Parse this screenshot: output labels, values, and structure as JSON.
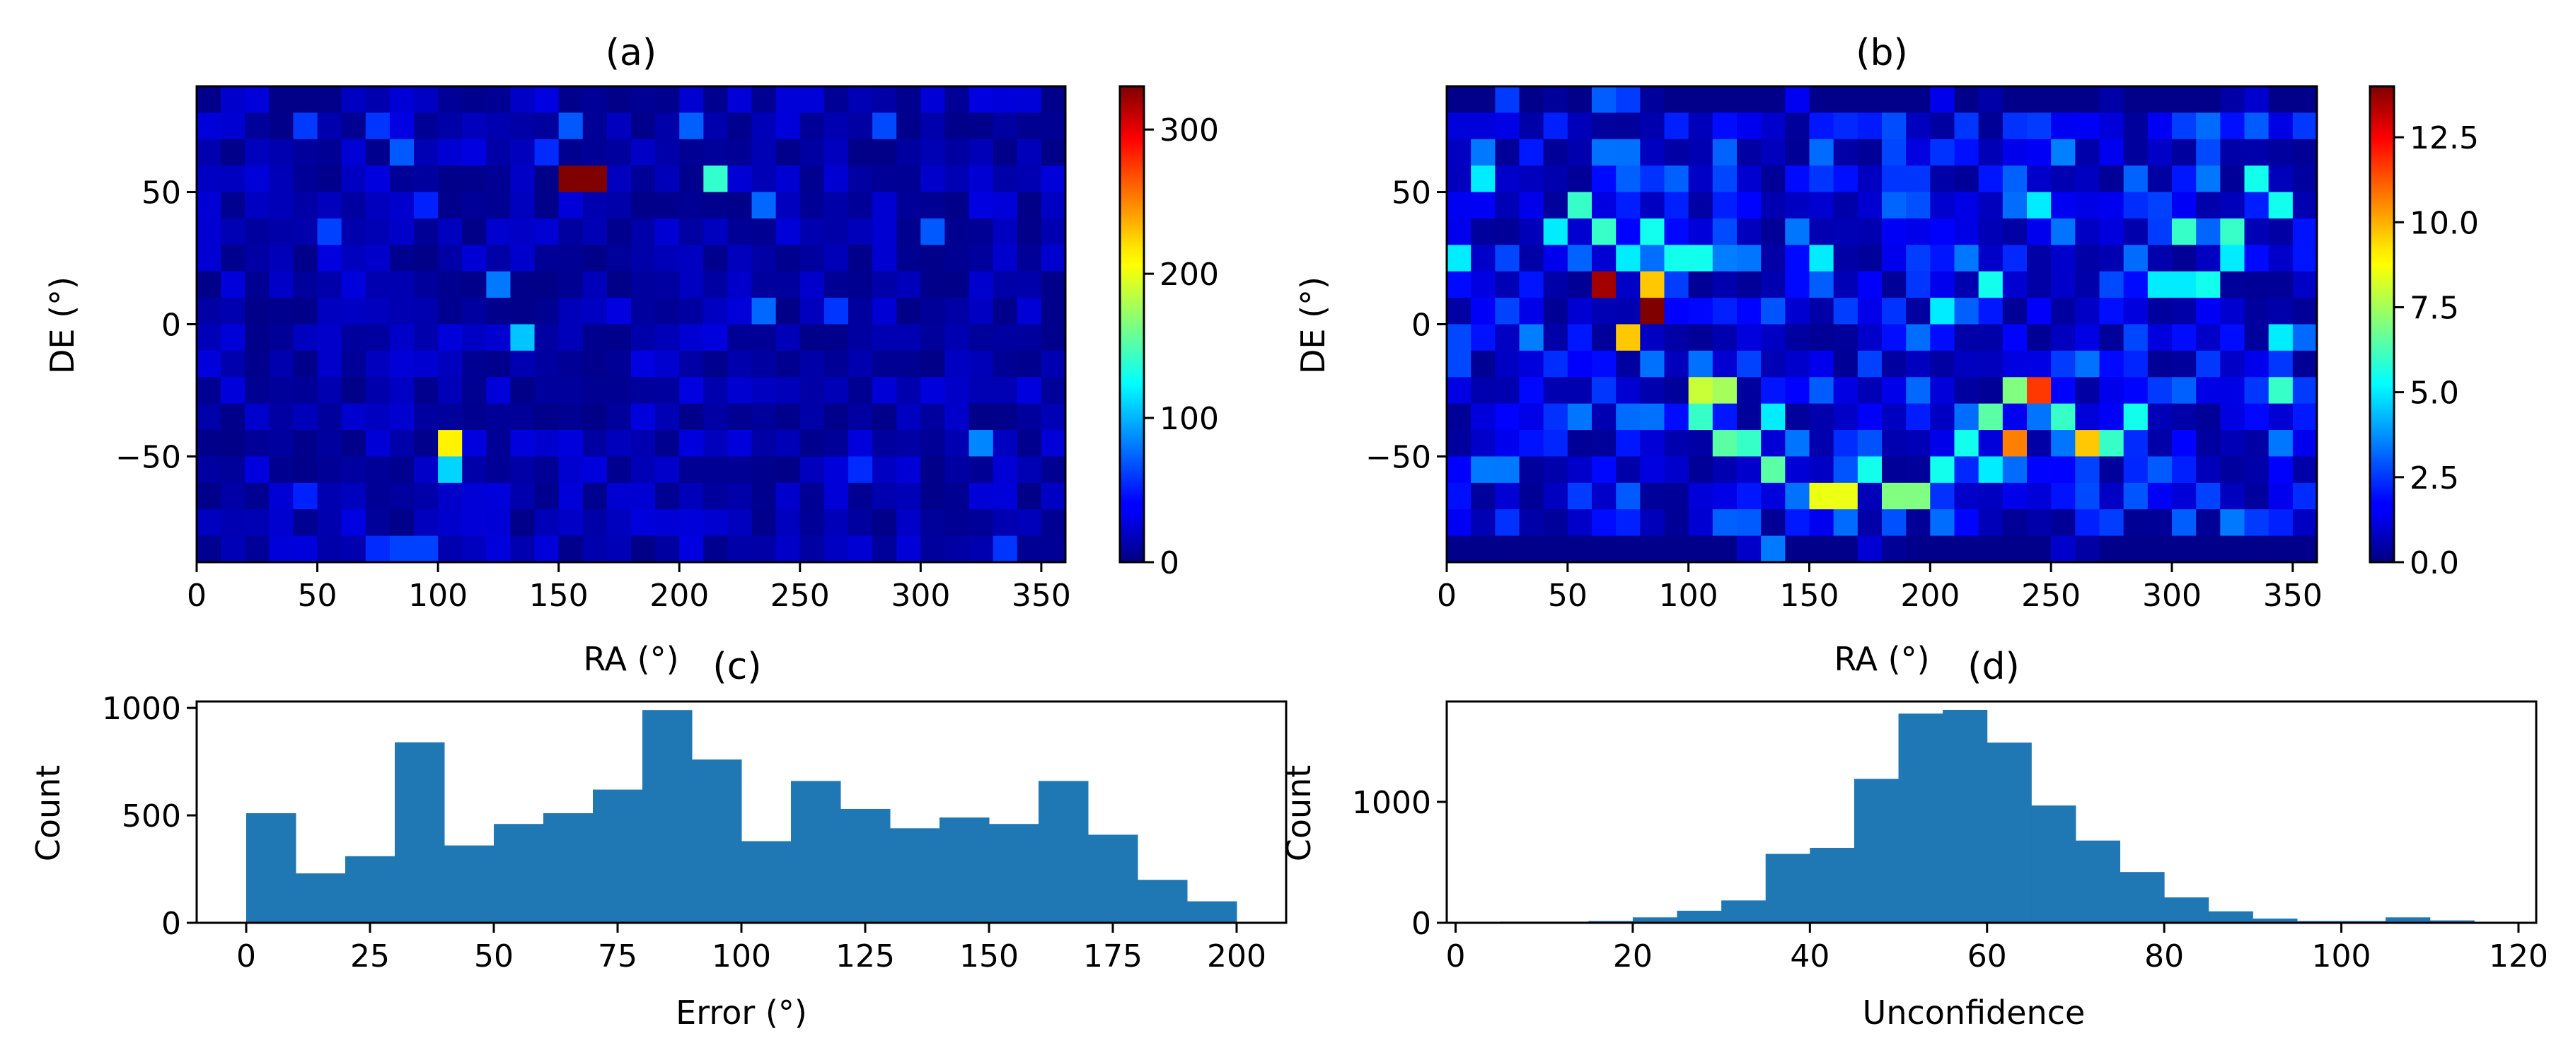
{
  "chart_data": [
    {
      "id": "a",
      "type": "heatmap",
      "title": "(a)",
      "xlabel": "RA (°)",
      "ylabel": "DE (°)",
      "xlim": [
        0,
        360
      ],
      "ylim": [
        -90,
        90
      ],
      "xticks": [
        0,
        50,
        100,
        150,
        200,
        250,
        300,
        350
      ],
      "yticks": [
        -50,
        0,
        50
      ],
      "ytick_labels": [
        "−50",
        "0",
        "50"
      ],
      "grid_cols": 36,
      "grid_rows": 18,
      "colormap": "jet",
      "colorbar": {
        "min": 0,
        "max": 330,
        "ticks": [
          0,
          100,
          200,
          300
        ],
        "tick_labels": [
          "0",
          "100",
          "200",
          "300"
        ]
      },
      "background_range": [
        3,
        32
      ],
      "hotspots": [
        {
          "ra": 155,
          "de": 55,
          "value": 330
        },
        {
          "ra": 165,
          "de": 55,
          "value": 330
        },
        {
          "ra": 215,
          "de": 55,
          "value": 140
        },
        {
          "ra": 105,
          "de": -45,
          "value": 210
        },
        {
          "ra": 105,
          "de": -55,
          "value": 110
        },
        {
          "ra": 135,
          "de": -5,
          "value": 105
        },
        {
          "ra": 325,
          "de": -45,
          "value": 85
        },
        {
          "ra": 235,
          "de": 45,
          "value": 75
        },
        {
          "ra": 235,
          "de": 5,
          "value": 75
        },
        {
          "ra": 125,
          "de": 15,
          "value": 80
        },
        {
          "ra": 85,
          "de": 65,
          "value": 70
        },
        {
          "ra": 155,
          "de": 75,
          "value": 70
        },
        {
          "ra": 205,
          "de": 75,
          "value": 72
        },
        {
          "ra": 305,
          "de": 35,
          "value": 70
        },
        {
          "ra": 55,
          "de": 35,
          "value": 62
        },
        {
          "ra": 285,
          "de": 75,
          "value": 65
        },
        {
          "ra": 45,
          "de": 75,
          "value": 60
        },
        {
          "ra": 75,
          "de": 75,
          "value": 58
        },
        {
          "ra": 265,
          "de": 5,
          "value": 58
        },
        {
          "ra": 85,
          "de": -85,
          "value": 62
        },
        {
          "ra": 95,
          "de": -85,
          "value": 62
        },
        {
          "ra": 75,
          "de": -85,
          "value": 55
        },
        {
          "ra": 335,
          "de": -85,
          "value": 58
        },
        {
          "ra": 275,
          "de": -55,
          "value": 55
        },
        {
          "ra": 45,
          "de": -65,
          "value": 52
        },
        {
          "ra": 145,
          "de": 65,
          "value": 55
        },
        {
          "ra": 95,
          "de": 45,
          "value": 52
        }
      ]
    },
    {
      "id": "b",
      "type": "heatmap",
      "title": "(b)",
      "xlabel": "RA (°)",
      "ylabel": "DE (°)",
      "xlim": [
        0,
        360
      ],
      "ylim": [
        -90,
        90
      ],
      "xticks": [
        0,
        50,
        100,
        150,
        200,
        250,
        300,
        350
      ],
      "yticks": [
        -50,
        0,
        50
      ],
      "ytick_labels": [
        "−50",
        "0",
        "50"
      ],
      "grid_cols": 36,
      "grid_rows": 18,
      "colormap": "jet",
      "colorbar": {
        "min": 0,
        "max": 14,
        "ticks": [
          0,
          2.5,
          5,
          7.5,
          10,
          12.5
        ],
        "tick_labels": [
          "0.0",
          "2.5",
          "5.0",
          "7.5",
          "10.0",
          "12.5"
        ]
      },
      "background_range": [
        0.3,
        3.5
      ],
      "hotspots": [
        {
          "ra": 65,
          "de": 15,
          "value": 13.5
        },
        {
          "ra": 85,
          "de": 5,
          "value": 14
        },
        {
          "ra": 245,
          "de": -25,
          "value": 11.5
        },
        {
          "ra": 235,
          "de": -45,
          "value": 10.5
        },
        {
          "ra": 265,
          "de": -45,
          "value": 9.5
        },
        {
          "ra": 85,
          "de": 15,
          "value": 9.5
        },
        {
          "ra": 75,
          "de": -5,
          "value": 9.5
        },
        {
          "ra": 155,
          "de": -65,
          "value": 8.5
        },
        {
          "ra": 165,
          "de": -65,
          "value": 8.5
        },
        {
          "ra": 105,
          "de": -25,
          "value": 8
        },
        {
          "ra": 115,
          "de": -25,
          "value": 7.5
        },
        {
          "ra": 235,
          "de": -25,
          "value": 7
        },
        {
          "ra": 185,
          "de": -65,
          "value": 7
        },
        {
          "ra": 195,
          "de": -65,
          "value": 7
        },
        {
          "ra": 135,
          "de": -55,
          "value": 6.5
        },
        {
          "ra": 115,
          "de": -45,
          "value": 6.5
        },
        {
          "ra": 55,
          "de": 45,
          "value": 6
        },
        {
          "ra": 105,
          "de": -35,
          "value": 6
        },
        {
          "ra": 65,
          "de": 35,
          "value": 6
        },
        {
          "ra": 225,
          "de": -35,
          "value": 6.5
        },
        {
          "ra": 255,
          "de": -35,
          "value": 6
        },
        {
          "ra": 275,
          "de": -45,
          "value": 6
        },
        {
          "ra": 305,
          "de": 35,
          "value": 6
        },
        {
          "ra": 325,
          "de": 35,
          "value": 6
        },
        {
          "ra": 345,
          "de": -25,
          "value": 6
        },
        {
          "ra": 125,
          "de": -45,
          "value": 6
        },
        {
          "ra": 225,
          "de": 15,
          "value": 5.5
        },
        {
          "ra": 95,
          "de": 25,
          "value": 5.5
        },
        {
          "ra": 105,
          "de": 25,
          "value": 5.5
        },
        {
          "ra": 85,
          "de": 35,
          "value": 5.5
        },
        {
          "ra": 175,
          "de": -55,
          "value": 5.5
        },
        {
          "ra": 205,
          "de": -55,
          "value": 5.5
        },
        {
          "ra": 215,
          "de": -45,
          "value": 5.5
        },
        {
          "ra": 285,
          "de": -35,
          "value": 5.5
        },
        {
          "ra": 315,
          "de": 15,
          "value": 5.5
        },
        {
          "ra": 335,
          "de": 55,
          "value": 5.5
        },
        {
          "ra": 345,
          "de": 45,
          "value": 5.5
        },
        {
          "ra": 15,
          "de": 55,
          "value": 5
        },
        {
          "ra": 5,
          "de": 25,
          "value": 5
        },
        {
          "ra": 45,
          "de": 35,
          "value": 5
        },
        {
          "ra": 75,
          "de": 25,
          "value": 5
        },
        {
          "ra": 155,
          "de": 25,
          "value": 5
        },
        {
          "ra": 245,
          "de": 45,
          "value": 5
        },
        {
          "ra": 205,
          "de": 5,
          "value": 5
        },
        {
          "ra": 135,
          "de": -35,
          "value": 5
        },
        {
          "ra": 225,
          "de": -55,
          "value": 5
        },
        {
          "ra": 295,
          "de": 15,
          "value": 5
        },
        {
          "ra": 305,
          "de": 15,
          "value": 5
        },
        {
          "ra": 325,
          "de": 25,
          "value": 5
        },
        {
          "ra": 345,
          "de": -5,
          "value": 5
        }
      ],
      "low_cells": [
        {
          "row": 0,
          "cols": "all_except",
          "except": [
            2,
            4,
            6,
            7,
            8,
            14,
            20,
            22,
            27,
            32,
            33
          ]
        },
        {
          "row": 17,
          "cols": "all_except",
          "except": [
            12,
            13,
            17,
            18,
            25,
            26
          ]
        }
      ]
    },
    {
      "id": "c",
      "type": "bar",
      "title": "(c)",
      "xlabel": "Error (°)",
      "ylabel": "Count",
      "xlim": [
        -10,
        210
      ],
      "ylim": [
        0,
        1030
      ],
      "xticks": [
        0,
        25,
        50,
        75,
        100,
        125,
        150,
        175,
        200
      ],
      "yticks": [
        0,
        500,
        1000
      ],
      "bin_edges": [
        0,
        10,
        20,
        30,
        40,
        50,
        60,
        70,
        80,
        90,
        100,
        110,
        120,
        130,
        140,
        150,
        160,
        170,
        180,
        190,
        200
      ],
      "values": [
        510,
        230,
        310,
        840,
        360,
        460,
        510,
        620,
        990,
        760,
        380,
        660,
        530,
        440,
        490,
        460,
        660,
        410,
        200,
        100
      ],
      "color": "#1f77b4"
    },
    {
      "id": "d",
      "type": "bar",
      "title": "(d)",
      "xlabel": "Unconfidence",
      "ylabel": "Count",
      "xlim": [
        -1,
        122
      ],
      "ylim": [
        0,
        1830
      ],
      "xticks": [
        0,
        20,
        40,
        60,
        80,
        100,
        120
      ],
      "yticks": [
        0,
        1000
      ],
      "bin_edges": [
        5,
        10,
        15,
        20,
        25,
        30,
        35,
        40,
        45,
        50,
        55,
        60,
        65,
        70,
        75,
        80,
        85,
        90,
        95,
        100,
        105,
        110,
        115
      ],
      "values": [
        10,
        10,
        15,
        45,
        100,
        185,
        570,
        620,
        1190,
        1730,
        1760,
        1490,
        970,
        680,
        420,
        210,
        95,
        35,
        15,
        15,
        45,
        20
      ],
      "color": "#1f77b4"
    }
  ]
}
